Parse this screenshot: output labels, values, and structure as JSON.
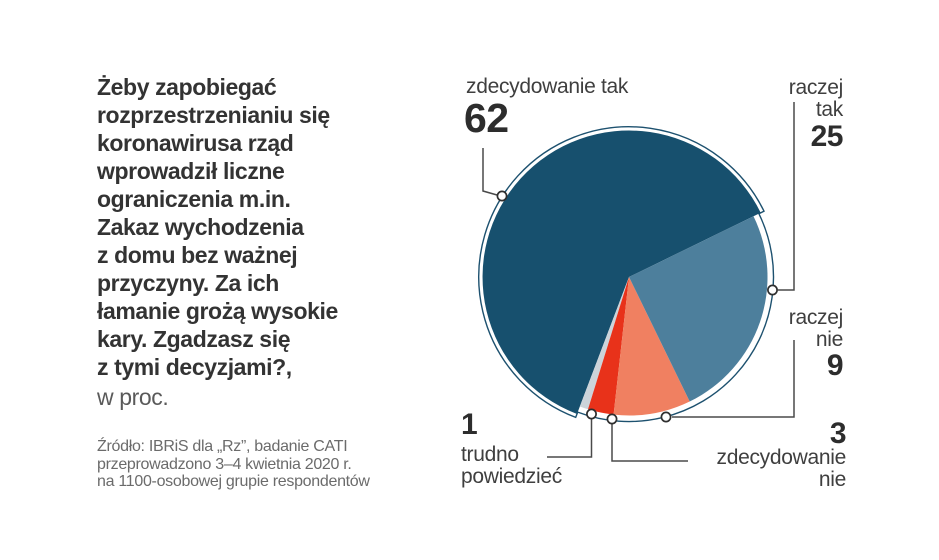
{
  "question": {
    "text": "Żeby zapobiegać\nrozprzestrzenianiu się\nkoronawirusa rząd\nwprowadził liczne\nograniczenia m.in.\nZakaz wychodzenia\nz domu bez ważnej\nprzyczyny. Za ich\nłamanie grożą wysokie\nkary. Zgadzasz się\nz tymi decyzjami?,",
    "unit_note": "w proc."
  },
  "source": {
    "text": "Źródło: IBRiS dla „Rz”, badanie CATI\nprzeprowadzono 3–4 kwietnia 2020 r.\nna 1100-osobowej grupie respondentów"
  },
  "chart_data": {
    "type": "pie",
    "unit": "percent",
    "start_angle_deg": 26,
    "direction": "counterclockwise",
    "legend_position": "callouts",
    "slices": [
      {
        "label": "zdecydowanie tak",
        "value": 62,
        "color": "#17506e",
        "exploded": true
      },
      {
        "label": "trudno powiedzieć",
        "value": 1,
        "color": "#ccd4da",
        "exploded": false
      },
      {
        "label": "zdecydowanie nie",
        "value": 3,
        "color": "#e8321a",
        "exploded": false
      },
      {
        "label": "raczej nie",
        "value": 9,
        "color": "#f08061",
        "exploded": false
      },
      {
        "label": "raczej tak",
        "value": 25,
        "color": "#4d7f9c",
        "exploded": false
      }
    ],
    "colors": {
      "outline": "#1d516f",
      "callout_line": "#4a4a4a",
      "marker_fill": "#ffffff",
      "marker_stroke": "#2f2f2f"
    }
  }
}
